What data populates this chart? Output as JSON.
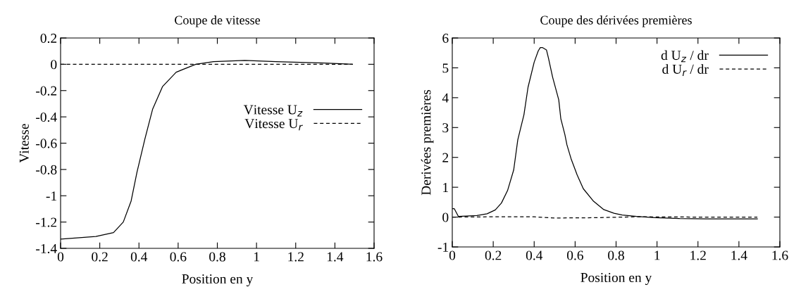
{
  "chart_data": [
    {
      "type": "line",
      "title": "Coupe de vitesse",
      "xlabel": "Position en y",
      "ylabel": "Vitesse",
      "xlim": [
        0,
        1.6
      ],
      "xticks": [
        0,
        0.2,
        0.4,
        0.6,
        0.8,
        1,
        1.2,
        1.4,
        1.6
      ],
      "ylim": [
        -1.4,
        0.2
      ],
      "yticks": [
        -1.4,
        -1.2,
        -1,
        -0.8,
        -0.6,
        -0.4,
        -0.2,
        0,
        0.2
      ],
      "legend": "right",
      "grid": false,
      "series": [
        {
          "name": "Vitesse U$_{z}$",
          "color": "#000000",
          "line_style": "solid",
          "x": [
            0,
            0.18,
            0.27,
            0.32,
            0.36,
            0.39,
            0.43,
            0.47,
            0.52,
            0.59,
            0.69,
            0.78,
            0.94,
            1.1,
            1.35,
            1.49
          ],
          "values": [
            -1.33,
            -1.31,
            -1.28,
            -1.2,
            -1.04,
            -0.82,
            -0.57,
            -0.34,
            -0.17,
            -0.06,
            0,
            0.02,
            0.03,
            0.02,
            0.01,
            0
          ]
        },
        {
          "name": "Vitesse U$_{r}$",
          "color": "#000000",
          "line_style": "dashed",
          "x": [
            0,
            0.5,
            1,
            1.49
          ],
          "values": [
            0,
            0,
            0,
            0
          ]
        }
      ]
    },
    {
      "type": "line",
      "title": "Coupe des dérivées premières",
      "xlabel": "Position en y",
      "ylabel": "Derivées premières",
      "xlim": [
        0,
        1.6
      ],
      "xticks": [
        0,
        0.2,
        0.4,
        0.6,
        0.8,
        1,
        1.2,
        1.4,
        1.6
      ],
      "ylim": [
        -1,
        6
      ],
      "yticks": [
        -1,
        0,
        1,
        2,
        3,
        4,
        5,
        6
      ],
      "legend": "top right",
      "grid": false,
      "series": [
        {
          "name": "d U$_{z}$ / dr",
          "color": "#000000",
          "line_style": "solid",
          "x": [
            0,
            0.01,
            0.03,
            0.12,
            0.17,
            0.21,
            0.24,
            0.27,
            0.3,
            0.32,
            0.35,
            0.37,
            0.4,
            0.42,
            0.43,
            0.44,
            0.46,
            0.47,
            0.49,
            0.52,
            0.53,
            0.55,
            0.56,
            0.58,
            0.61,
            0.64,
            0.69,
            0.74,
            0.79,
            0.83,
            0.9,
            0.99,
            1.11,
            1.24,
            1.49
          ],
          "values": [
            0.28,
            0.28,
            0.02,
            0.05,
            0.11,
            0.24,
            0.47,
            0.89,
            1.58,
            2.59,
            3.43,
            4.35,
            5.19,
            5.57,
            5.68,
            5.68,
            5.6,
            5.32,
            4.69,
            3.93,
            3.3,
            2.76,
            2.42,
            1.96,
            1.41,
            0.95,
            0.53,
            0.25,
            0.13,
            0.07,
            0.02,
            -0.02,
            -0.05,
            -0.06,
            -0.06
          ]
        },
        {
          "name": "d U$_{r}$ / dr",
          "color": "#000000",
          "line_style": "dashed",
          "x": [
            0,
            0.2,
            0.4,
            0.5,
            0.7,
            0.9,
            1.2,
            1.49
          ],
          "values": [
            0,
            0.01,
            0.01,
            -0.03,
            -0.02,
            0.01,
            0,
            0
          ]
        }
      ]
    }
  ]
}
